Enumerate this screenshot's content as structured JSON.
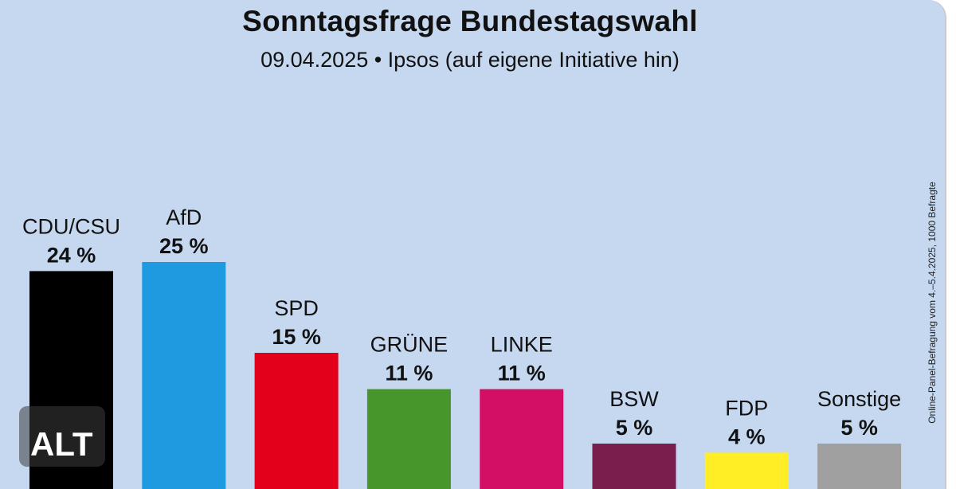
{
  "chart_data": {
    "type": "bar",
    "title": "Sonntagsfrage Bundestagswahl",
    "subtitle": "09.04.2025 • Ipsos (auf eigene Initiative hin)",
    "categories": [
      "CDU/CSU",
      "AfD",
      "SPD",
      "GRÜNE",
      "LINKE",
      "BSW",
      "FDP",
      "Sonstige"
    ],
    "values": [
      24,
      25,
      15,
      11,
      11,
      5,
      4,
      5
    ],
    "value_labels": [
      "24 %",
      "25 %",
      "15 %",
      "11 %",
      "11 %",
      "5 %",
      "4 %",
      "5 %"
    ],
    "colors": [
      "#000000",
      "#1e9be0",
      "#e3001b",
      "#46962b",
      "#d20f65",
      "#7a1e4e",
      "#ffed25",
      "#a0a0a0"
    ],
    "ylim": [
      0,
      25
    ],
    "grid": false,
    "legend": "none",
    "annotation": "Online-Panel-Befragung vom 4.–5.4.2025, 1000 Befragte"
  },
  "badge": {
    "label": "ALT"
  }
}
